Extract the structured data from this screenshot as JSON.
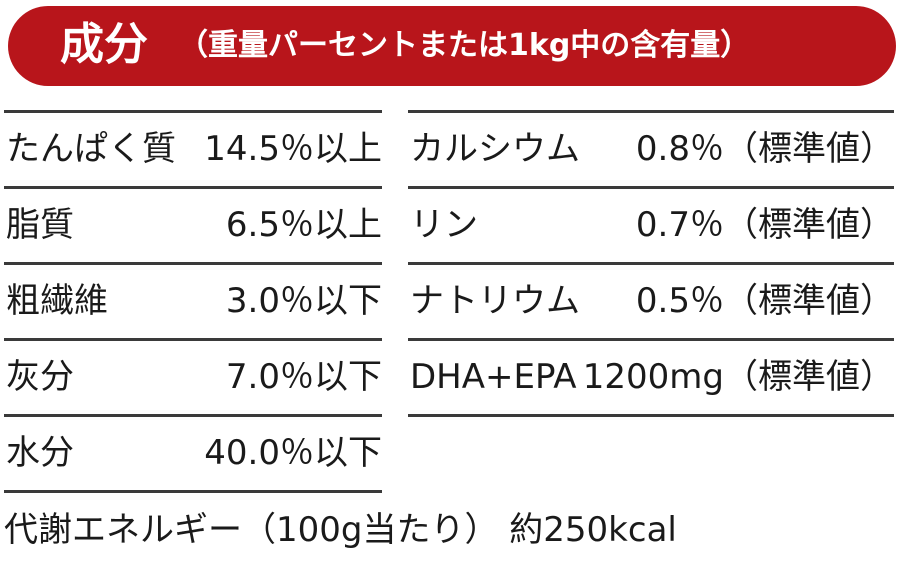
{
  "header": {
    "title": "成分",
    "subtitle": "（重量パーセントまたは1kg中の含有量）"
  },
  "left_nutrients": [
    {
      "name": "たんぱく質",
      "value": "14.5％以上"
    },
    {
      "name": "脂質",
      "value": "6.5％以上"
    },
    {
      "name": "粗繊維",
      "value": "3.0％以下"
    },
    {
      "name": "灰分",
      "value": "7.0％以下"
    },
    {
      "name": "水分",
      "value": "40.0％以下"
    }
  ],
  "right_nutrients": [
    {
      "name": "カルシウム",
      "value": "0.8％（標準値）"
    },
    {
      "name": "リン",
      "value": "0.7％（標準値）"
    },
    {
      "name": "ナトリウム",
      "value": "0.5％（標準値）"
    },
    {
      "name": "DHA+EPA",
      "value": "1200mg（標準値）"
    }
  ],
  "energy": "代謝エネルギー（100g当たり） 約250kcal",
  "colors": {
    "banner": "#b8151b",
    "text": "#1a1a1a",
    "rule": "#3a3a3a"
  }
}
